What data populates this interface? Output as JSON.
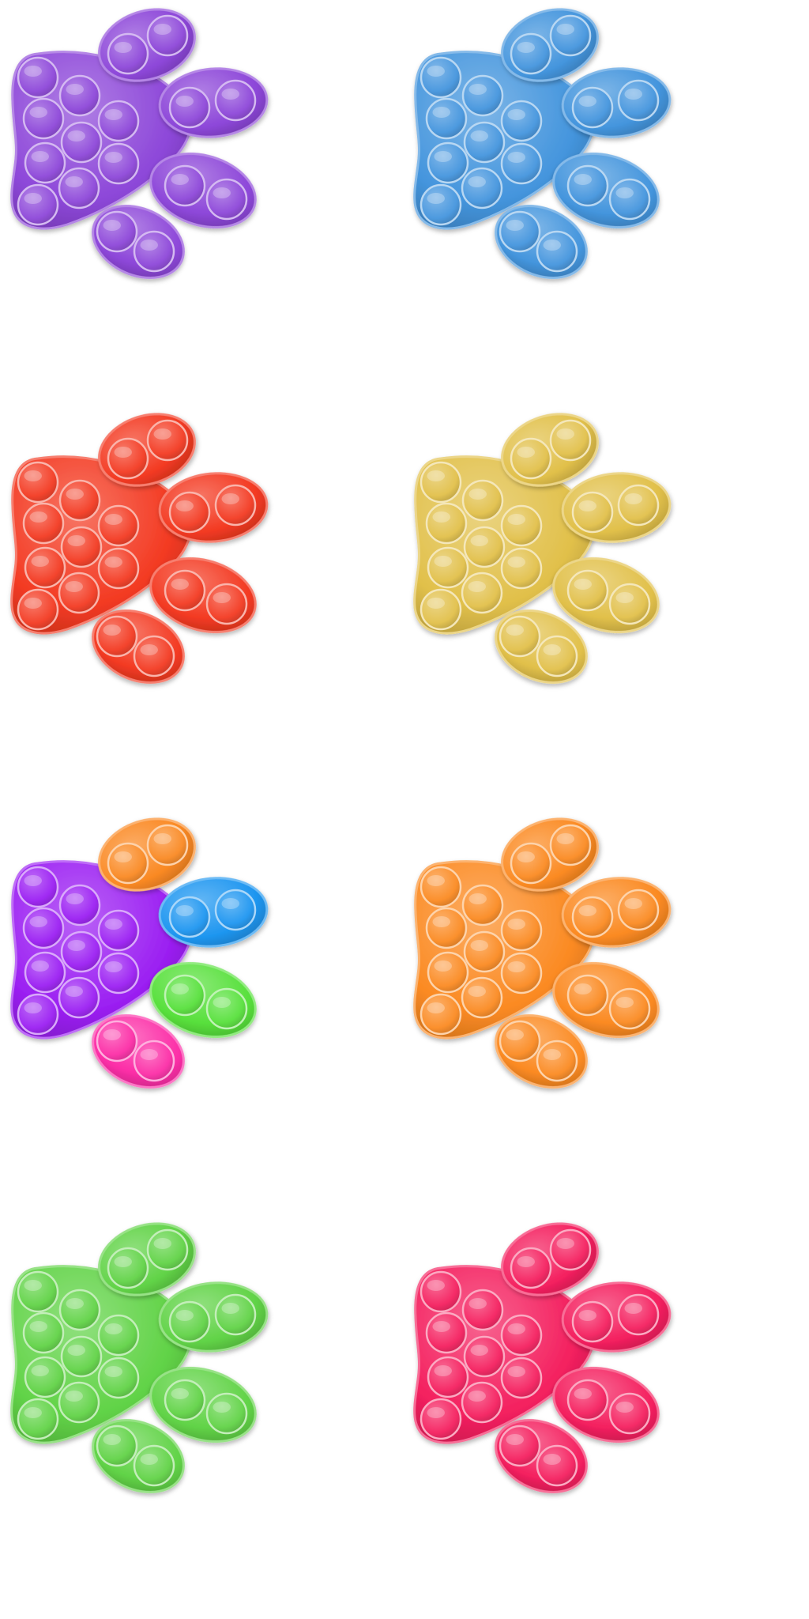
{
  "paws": [
    {
      "pad": "#8d47d9",
      "toes": [
        "#8d47d9",
        "#8d47d9",
        "#8d47d9",
        "#8d47d9"
      ]
    },
    {
      "pad": "#4495dd",
      "toes": [
        "#4495dd",
        "#4495dd",
        "#4495dd",
        "#4495dd"
      ]
    },
    {
      "pad": "#f33a22",
      "toes": [
        "#f33a22",
        "#f33a22",
        "#f33a22",
        "#f33a22"
      ]
    },
    {
      "pad": "#e1c04a",
      "toes": [
        "#e1c04a",
        "#e1c04a",
        "#e1c04a",
        "#e1c04a"
      ]
    },
    {
      "pad": "#9b1ff2",
      "toes": [
        "#fa8923",
        "#1e96f0",
        "#58e03c",
        "#fc2ea7"
      ]
    },
    {
      "pad": "#fb8a22",
      "toes": [
        "#fb8a22",
        "#fb8a22",
        "#fb8a22",
        "#fb8a22"
      ]
    },
    {
      "pad": "#61d347",
      "toes": [
        "#61d347",
        "#61d347",
        "#61d347",
        "#61d347"
      ]
    },
    {
      "pad": "#f4205f",
      "toes": [
        "#f4205f",
        "#f4205f",
        "#f4205f",
        "#f4205f"
      ]
    }
  ]
}
